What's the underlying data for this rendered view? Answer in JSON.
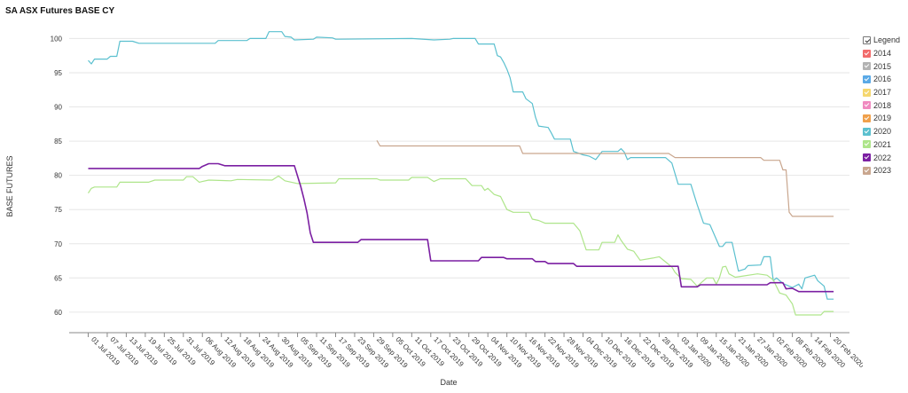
{
  "chart_data": {
    "type": "line",
    "title": "SA ASX Futures BASE CY",
    "xlabel": "Date",
    "ylabel": "BASE FUTURES",
    "ylim": [
      57,
      102
    ],
    "xlim": [
      "2019-06-25",
      "2020-02-26"
    ],
    "y_ticks": [
      60,
      65,
      70,
      75,
      80,
      85,
      90,
      95,
      100
    ],
    "x_ticks": [
      "2019-07-01",
      "2019-07-07",
      "2019-07-13",
      "2019-07-19",
      "2019-07-25",
      "2019-07-31",
      "2019-08-06",
      "2019-08-12",
      "2019-08-18",
      "2019-08-24",
      "2019-08-30",
      "2019-09-05",
      "2019-09-11",
      "2019-09-17",
      "2019-09-23",
      "2019-09-29",
      "2019-10-05",
      "2019-10-11",
      "2019-10-17",
      "2019-10-23",
      "2019-10-29",
      "2019-11-04",
      "2019-11-10",
      "2019-11-16",
      "2019-11-22",
      "2019-11-28",
      "2019-12-04",
      "2019-12-10",
      "2019-12-16",
      "2019-12-22",
      "2019-12-28",
      "2020-01-03",
      "2020-01-09",
      "2020-01-15",
      "2020-01-21",
      "2020-01-27",
      "2020-02-02",
      "2020-02-08",
      "2020-02-14",
      "2020-02-20"
    ],
    "x_tick_labels": [
      "01 Jul 2019",
      "07 Jul 2019",
      "13 Jul 2019",
      "19 Jul 2019",
      "25 Jul 2019",
      "31 Jul 2019",
      "06 Aug 2019",
      "12 Aug 2019",
      "18 Aug 2019",
      "24 Aug 2019",
      "30 Aug 2019",
      "05 Sep 2019",
      "11 Sep 2019",
      "17 Sep 2019",
      "23 Sep 2019",
      "29 Sep 2019",
      "05 Oct 2019",
      "11 Oct 2019",
      "17 Oct 2019",
      "23 Oct 2019",
      "29 Oct 2019",
      "04 Nov 2019",
      "10 Nov 2019",
      "16 Nov 2019",
      "22 Nov 2019",
      "28 Nov 2019",
      "04 Dec 2019",
      "10 Dec 2019",
      "16 Dec 2019",
      "22 Dec 2019",
      "28 Dec 2019",
      "03 Jan 2020",
      "09 Jan 2020",
      "15 Jan 2020",
      "21 Jan 2020",
      "27 Jan 2020",
      "02 Feb 2020",
      "08 Feb 2020",
      "14 Feb 2020",
      "20 Feb 2020"
    ],
    "grid": true,
    "legend_position": "right",
    "legend_header": "Legend",
    "legend": [
      {
        "name": "2014",
        "color": "#f26b6b",
        "checked": true
      },
      {
        "name": "2015",
        "color": "#b3b3b3",
        "checked": true
      },
      {
        "name": "2016",
        "color": "#5aa9e6",
        "checked": true
      },
      {
        "name": "2017",
        "color": "#f5d76e",
        "checked": true
      },
      {
        "name": "2018",
        "color": "#f08ac0",
        "checked": true
      },
      {
        "name": "2019",
        "color": "#f0a04b",
        "checked": true
      },
      {
        "name": "2020",
        "color": "#5bc0cf",
        "checked": true
      },
      {
        "name": "2021",
        "color": "#aee58a",
        "checked": true
      },
      {
        "name": "2022",
        "color": "#7b1fa2",
        "checked": true
      },
      {
        "name": "2023",
        "color": "#c9a68e",
        "checked": true
      }
    ],
    "series": [
      {
        "name": "2020",
        "color": "#5bc0cf",
        "points": [
          [
            "2019-07-01",
            96.8
          ],
          [
            "2019-07-02",
            96.3
          ],
          [
            "2019-07-03",
            97.0
          ],
          [
            "2019-07-07",
            97.0
          ],
          [
            "2019-07-08",
            97.4
          ],
          [
            "2019-07-10",
            97.4
          ],
          [
            "2019-07-11",
            99.6
          ],
          [
            "2019-07-15",
            99.6
          ],
          [
            "2019-07-17",
            99.3
          ],
          [
            "2019-08-10",
            99.3
          ],
          [
            "2019-08-11",
            99.7
          ],
          [
            "2019-08-20",
            99.7
          ],
          [
            "2019-08-21",
            100.0
          ],
          [
            "2019-08-26",
            100.0
          ],
          [
            "2019-08-27",
            101.0
          ],
          [
            "2019-08-31",
            101.0
          ],
          [
            "2019-09-01",
            100.3
          ],
          [
            "2019-09-03",
            100.2
          ],
          [
            "2019-09-04",
            99.8
          ],
          [
            "2019-09-10",
            99.9
          ],
          [
            "2019-09-11",
            100.2
          ],
          [
            "2019-09-16",
            100.1
          ],
          [
            "2019-09-17",
            99.9
          ],
          [
            "2019-10-11",
            100.0
          ],
          [
            "2019-10-18",
            99.8
          ],
          [
            "2019-10-23",
            99.9
          ],
          [
            "2019-10-24",
            100.0
          ],
          [
            "2019-10-31",
            100.0
          ],
          [
            "2019-11-01",
            99.2
          ],
          [
            "2019-11-06",
            99.2
          ],
          [
            "2019-11-07",
            97.5
          ],
          [
            "2019-11-08",
            97.3
          ],
          [
            "2019-11-09",
            96.5
          ],
          [
            "2019-11-10",
            95.5
          ],
          [
            "2019-11-11",
            94.3
          ],
          [
            "2019-11-12",
            92.2
          ],
          [
            "2019-11-15",
            92.2
          ],
          [
            "2019-11-16",
            91.2
          ],
          [
            "2019-11-18",
            90.5
          ],
          [
            "2019-11-19",
            88.5
          ],
          [
            "2019-11-20",
            87.2
          ],
          [
            "2019-11-23",
            87.0
          ],
          [
            "2019-11-24",
            86.2
          ],
          [
            "2019-11-25",
            85.3
          ],
          [
            "2019-11-30",
            85.3
          ],
          [
            "2019-12-01",
            83.5
          ],
          [
            "2019-12-04",
            83.0
          ],
          [
            "2019-12-06",
            82.8
          ],
          [
            "2019-12-08",
            82.3
          ],
          [
            "2019-12-10",
            83.5
          ],
          [
            "2019-12-15",
            83.5
          ],
          [
            "2019-12-16",
            83.9
          ],
          [
            "2019-12-17",
            83.4
          ],
          [
            "2019-12-18",
            82.3
          ],
          [
            "2019-12-19",
            82.6
          ],
          [
            "2019-12-30",
            82.6
          ],
          [
            "2020-01-01",
            81.8
          ],
          [
            "2020-01-03",
            78.7
          ],
          [
            "2020-01-07",
            78.7
          ],
          [
            "2020-01-09",
            75.7
          ],
          [
            "2020-01-11",
            73.0
          ],
          [
            "2020-01-13",
            72.8
          ],
          [
            "2020-01-16",
            69.6
          ],
          [
            "2020-01-17",
            69.6
          ],
          [
            "2020-01-18",
            70.2
          ],
          [
            "2020-01-20",
            70.2
          ],
          [
            "2020-01-22",
            66.0
          ],
          [
            "2020-01-24",
            66.3
          ],
          [
            "2020-01-25",
            66.8
          ],
          [
            "2020-01-29",
            66.9
          ],
          [
            "2020-01-30",
            68.1
          ],
          [
            "2020-02-01",
            68.1
          ],
          [
            "2020-02-02",
            64.6
          ],
          [
            "2020-02-03",
            65.0
          ],
          [
            "2020-02-05",
            64.2
          ],
          [
            "2020-02-08",
            63.6
          ],
          [
            "2020-02-10",
            64.1
          ],
          [
            "2020-02-11",
            63.4
          ],
          [
            "2020-02-12",
            65.0
          ],
          [
            "2020-02-15",
            65.4
          ],
          [
            "2020-02-16",
            64.6
          ],
          [
            "2020-02-18",
            63.8
          ],
          [
            "2020-02-19",
            61.9
          ],
          [
            "2020-02-21",
            61.9
          ]
        ]
      },
      {
        "name": "2021",
        "color": "#aee58a",
        "points": [
          [
            "2019-07-01",
            77.4
          ],
          [
            "2019-07-02",
            78.1
          ],
          [
            "2019-07-03",
            78.3
          ],
          [
            "2019-07-07",
            78.3
          ],
          [
            "2019-07-10",
            78.3
          ],
          [
            "2019-07-11",
            79.0
          ],
          [
            "2019-07-20",
            79.0
          ],
          [
            "2019-07-22",
            79.3
          ],
          [
            "2019-07-31",
            79.3
          ],
          [
            "2019-08-01",
            79.8
          ],
          [
            "2019-08-03",
            79.8
          ],
          [
            "2019-08-05",
            79.0
          ],
          [
            "2019-08-06",
            79.1
          ],
          [
            "2019-08-08",
            79.3
          ],
          [
            "2019-08-15",
            79.2
          ],
          [
            "2019-08-17",
            79.4
          ],
          [
            "2019-08-28",
            79.3
          ],
          [
            "2019-08-30",
            79.9
          ],
          [
            "2019-09-01",
            79.2
          ],
          [
            "2019-09-05",
            78.8
          ],
          [
            "2019-09-17",
            78.9
          ],
          [
            "2019-09-18",
            79.5
          ],
          [
            "2019-09-30",
            79.5
          ],
          [
            "2019-10-01",
            79.3
          ],
          [
            "2019-10-10",
            79.3
          ],
          [
            "2019-10-11",
            79.7
          ],
          [
            "2019-10-16",
            79.7
          ],
          [
            "2019-10-18",
            79.1
          ],
          [
            "2019-10-20",
            79.5
          ],
          [
            "2019-10-28",
            79.5
          ],
          [
            "2019-10-30",
            78.5
          ],
          [
            "2019-11-02",
            78.5
          ],
          [
            "2019-11-03",
            77.8
          ],
          [
            "2019-11-04",
            78.1
          ],
          [
            "2019-11-06",
            77.2
          ],
          [
            "2019-11-08",
            76.9
          ],
          [
            "2019-11-10",
            75.0
          ],
          [
            "2019-11-12",
            74.6
          ],
          [
            "2019-11-17",
            74.6
          ],
          [
            "2019-11-18",
            73.6
          ],
          [
            "2019-11-20",
            73.4
          ],
          [
            "2019-11-22",
            73.0
          ],
          [
            "2019-12-01",
            73.0
          ],
          [
            "2019-12-03",
            71.9
          ],
          [
            "2019-12-04",
            70.5
          ],
          [
            "2019-12-05",
            69.1
          ],
          [
            "2019-12-09",
            69.1
          ],
          [
            "2019-12-10",
            70.2
          ],
          [
            "2019-12-14",
            70.2
          ],
          [
            "2019-12-15",
            71.3
          ],
          [
            "2019-12-16",
            70.5
          ],
          [
            "2019-12-18",
            69.2
          ],
          [
            "2019-12-20",
            68.9
          ],
          [
            "2019-12-22",
            67.6
          ],
          [
            "2019-12-26",
            67.9
          ],
          [
            "2019-12-28",
            68.1
          ],
          [
            "2020-01-01",
            66.6
          ],
          [
            "2020-01-02",
            65.8
          ],
          [
            "2020-01-04",
            64.9
          ],
          [
            "2020-01-07",
            64.8
          ],
          [
            "2020-01-09",
            63.8
          ],
          [
            "2020-01-12",
            65.0
          ],
          [
            "2020-01-14",
            65.0
          ],
          [
            "2020-01-15",
            64.1
          ],
          [
            "2020-01-16",
            65.0
          ],
          [
            "2020-01-17",
            66.6
          ],
          [
            "2020-01-18",
            66.7
          ],
          [
            "2020-01-19",
            65.6
          ],
          [
            "2020-01-21",
            65.1
          ],
          [
            "2020-01-28",
            65.6
          ],
          [
            "2020-01-31",
            65.4
          ],
          [
            "2020-02-02",
            64.7
          ],
          [
            "2020-02-04",
            62.8
          ],
          [
            "2020-02-06",
            62.5
          ],
          [
            "2020-02-08",
            61.2
          ],
          [
            "2020-02-09",
            59.6
          ],
          [
            "2020-02-17",
            59.6
          ],
          [
            "2020-02-18",
            60.1
          ],
          [
            "2020-02-21",
            60.1
          ]
        ]
      },
      {
        "name": "2022",
        "color": "#7b1fa2",
        "points": [
          [
            "2019-07-01",
            81.0
          ],
          [
            "2019-08-05",
            81.0
          ],
          [
            "2019-08-06",
            81.3
          ],
          [
            "2019-08-08",
            81.7
          ],
          [
            "2019-08-11",
            81.7
          ],
          [
            "2019-08-13",
            81.4
          ],
          [
            "2019-09-04",
            81.4
          ],
          [
            "2019-09-06",
            78.4
          ],
          [
            "2019-09-07",
            76.6
          ],
          [
            "2019-09-08",
            74.5
          ],
          [
            "2019-09-09",
            71.6
          ],
          [
            "2019-09-10",
            70.2
          ],
          [
            "2019-09-24",
            70.2
          ],
          [
            "2019-09-25",
            70.6
          ],
          [
            "2019-10-16",
            70.6
          ],
          [
            "2019-10-17",
            67.5
          ],
          [
            "2019-11-01",
            67.5
          ],
          [
            "2019-11-02",
            68.0
          ],
          [
            "2019-11-09",
            68.0
          ],
          [
            "2019-11-10",
            67.8
          ],
          [
            "2019-11-18",
            67.8
          ],
          [
            "2019-11-19",
            67.4
          ],
          [
            "2019-11-22",
            67.4
          ],
          [
            "2019-11-23",
            67.1
          ],
          [
            "2019-12-01",
            67.1
          ],
          [
            "2019-12-02",
            66.7
          ],
          [
            "2020-01-03",
            66.7
          ],
          [
            "2020-01-04",
            63.7
          ],
          [
            "2020-01-09",
            63.7
          ],
          [
            "2020-01-10",
            64.0
          ],
          [
            "2020-01-31",
            64.0
          ],
          [
            "2020-02-01",
            64.3
          ],
          [
            "2020-02-05",
            64.3
          ],
          [
            "2020-02-06",
            63.4
          ],
          [
            "2020-02-08",
            63.5
          ],
          [
            "2020-02-10",
            63.0
          ],
          [
            "2020-02-21",
            63.0
          ]
        ]
      },
      {
        "name": "2023",
        "color": "#c9a68e",
        "points": [
          [
            "2019-09-30",
            85.1
          ],
          [
            "2019-10-01",
            84.3
          ],
          [
            "2019-11-14",
            84.3
          ],
          [
            "2019-11-15",
            83.2
          ],
          [
            "2019-12-31",
            83.2
          ],
          [
            "2020-01-02",
            82.6
          ],
          [
            "2020-01-29",
            82.6
          ],
          [
            "2020-01-30",
            82.2
          ],
          [
            "2020-02-04",
            82.2
          ],
          [
            "2020-02-05",
            80.8
          ],
          [
            "2020-02-06",
            80.8
          ],
          [
            "2020-02-07",
            74.6
          ],
          [
            "2020-02-08",
            74.0
          ],
          [
            "2020-02-21",
            74.0
          ]
        ]
      }
    ]
  }
}
